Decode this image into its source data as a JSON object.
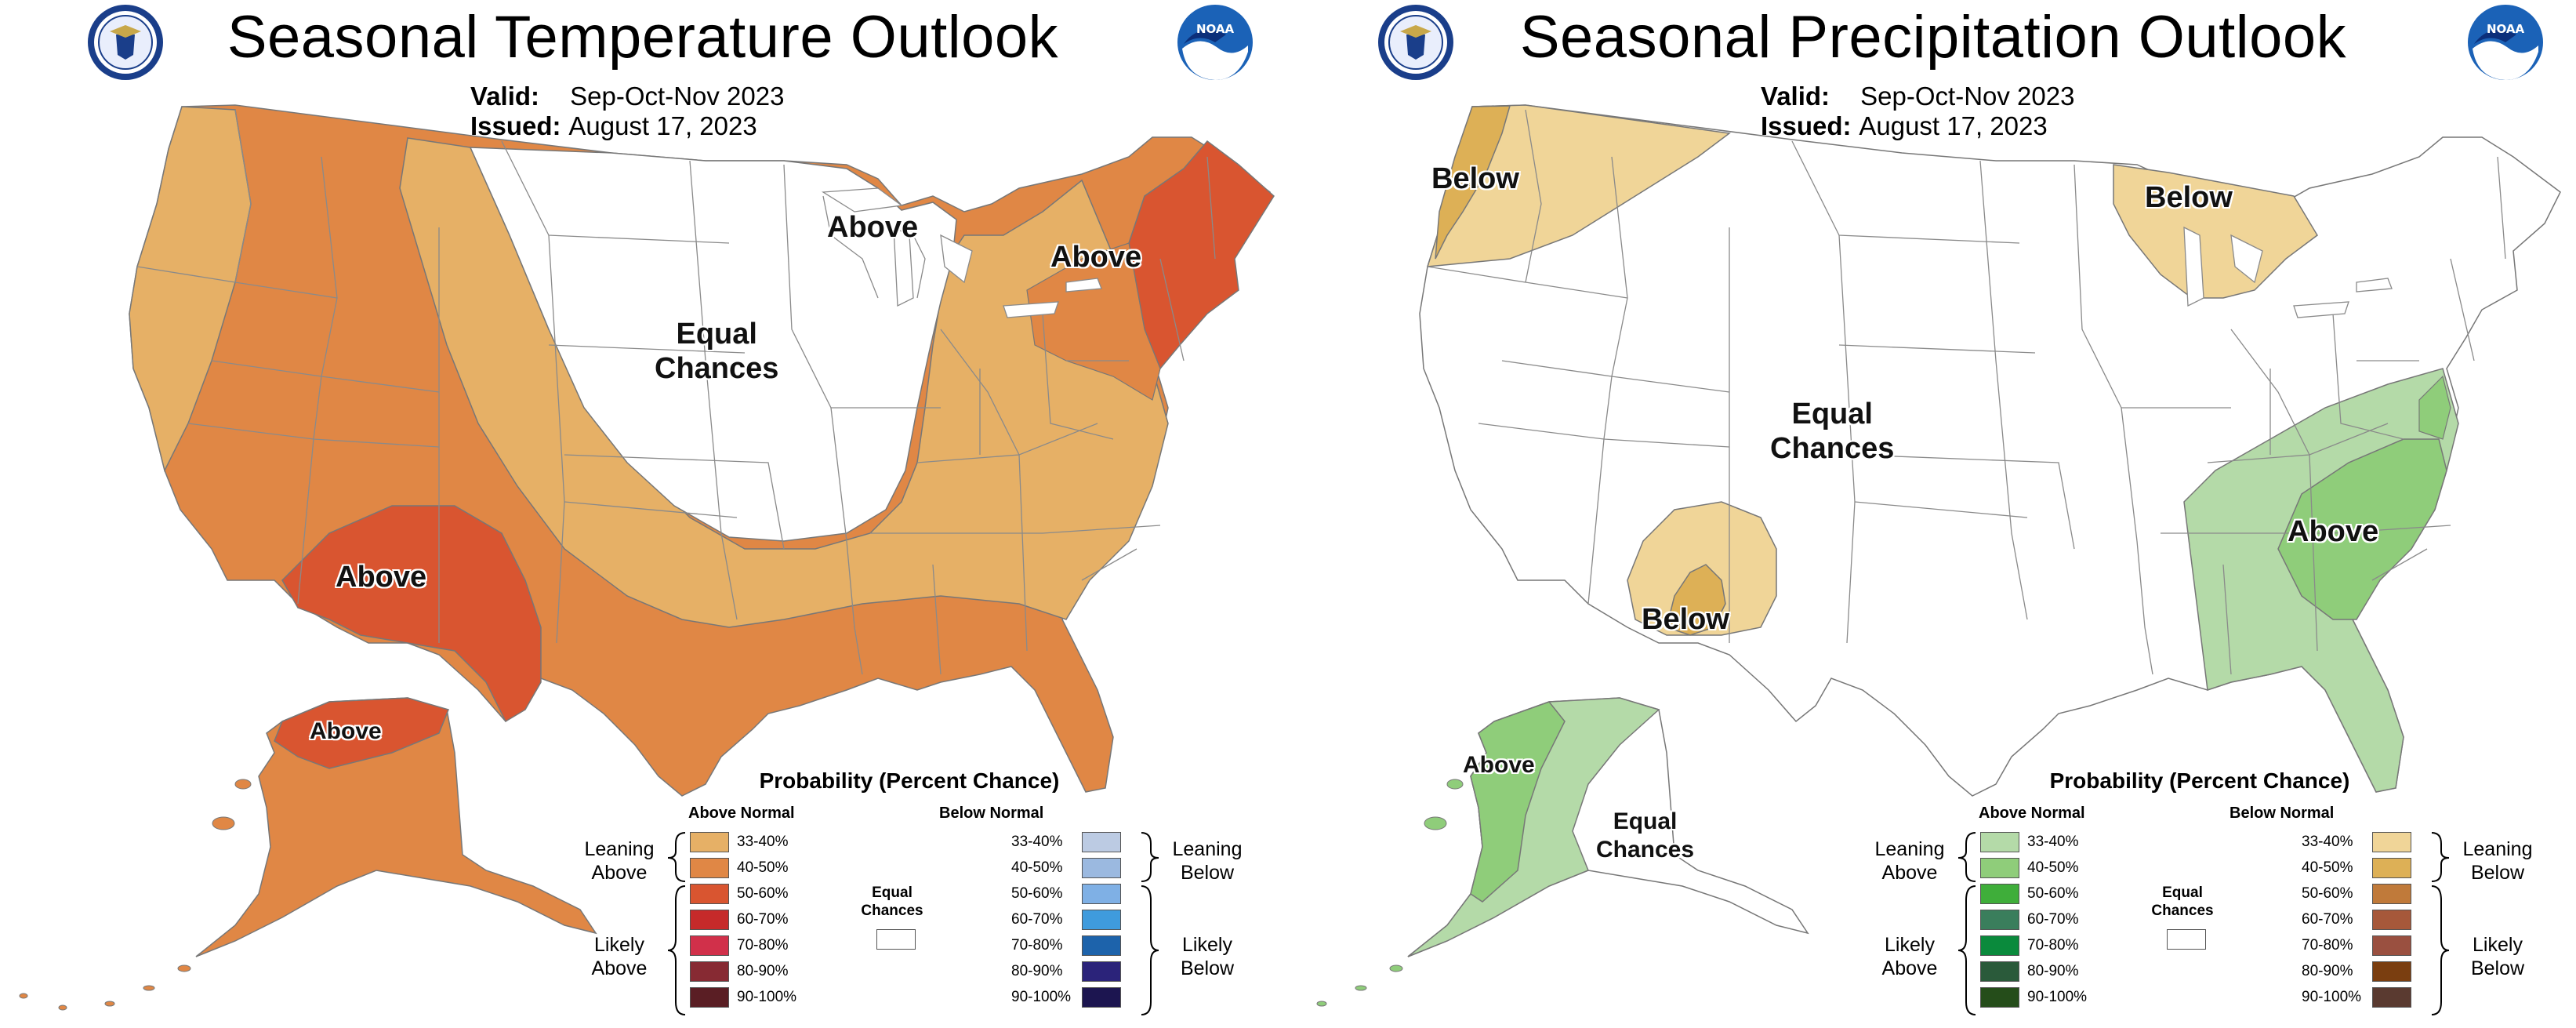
{
  "temperature": {
    "title": "Seasonal Temperature Outlook",
    "valid_label": "Valid:",
    "valid_value": "Sep-Oct-Nov 2023",
    "issued_label": "Issued:",
    "issued_value": "August 17, 2023",
    "region_labels": {
      "west_above": "Above",
      "northeast_above": "Above",
      "great_lakes_above": "Above",
      "central_equal": "Equal\nChances",
      "alaska_above": "Above"
    },
    "colors": {
      "lean_above": "#e6b066",
      "above_40_50": "#e08745",
      "above_50_60": "#d95530"
    }
  },
  "precipitation": {
    "title": "Seasonal Precipitation Outlook",
    "valid_label": "Valid:",
    "valid_value": "Sep-Oct-Nov 2023",
    "issued_label": "Issued:",
    "issued_value": "August 17, 2023",
    "region_labels": {
      "northwest_below": "Below",
      "great_lakes_below": "Below",
      "central_equal": "Equal\nChances",
      "southwest_below": "Below",
      "southeast_above": "Above",
      "alaska_above": "Above",
      "alaska_equal": "Equal\nChances"
    },
    "colors": {
      "wet_33_40": "#b4daa8",
      "wet_40_50": "#8fcd7a",
      "dry_33_40": "#f0d598",
      "dry_40_50": "#ddb056"
    }
  },
  "legend_temp": {
    "title": "Probability (Percent Chance)",
    "above_head": "Above Normal",
    "below_head": "Below Normal",
    "leaning_above": "Leaning\nAbove",
    "likely_above": "Likely\nAbove",
    "leaning_below": "Leaning\nBelow",
    "likely_below": "Likely\nBelow",
    "equal": "Equal\nChances",
    "above_rows": [
      {
        "label": "33-40%",
        "color": "#e6b066"
      },
      {
        "label": "40-50%",
        "color": "#e08745"
      },
      {
        "label": "50-60%",
        "color": "#d95530"
      },
      {
        "label": "60-70%",
        "color": "#c62a2a"
      },
      {
        "label": "70-80%",
        "color": "#d1304a"
      },
      {
        "label": "80-90%",
        "color": "#872a33"
      },
      {
        "label": "90-100%",
        "color": "#5a1e24"
      }
    ],
    "below_rows": [
      {
        "label": "33-40%",
        "color": "#bccbe3"
      },
      {
        "label": "40-50%",
        "color": "#9bb9e0"
      },
      {
        "label": "50-60%",
        "color": "#7fb0e5"
      },
      {
        "label": "60-70%",
        "color": "#3f9bdd"
      },
      {
        "label": "70-80%",
        "color": "#1d63ab"
      },
      {
        "label": "80-90%",
        "color": "#2b237a"
      },
      {
        "label": "90-100%",
        "color": "#1c1550"
      }
    ]
  },
  "legend_precip": {
    "title": "Probability (Percent Chance)",
    "above_head": "Above Normal",
    "below_head": "Below Normal",
    "leaning_above": "Leaning\nAbove",
    "likely_above": "Likely\nAbove",
    "leaning_below": "Leaning\nBelow",
    "likely_below": "Likely\nBelow",
    "equal": "Equal\nChances",
    "above_rows": [
      {
        "label": "33-40%",
        "color": "#b4daa8"
      },
      {
        "label": "40-50%",
        "color": "#8fcd7a"
      },
      {
        "label": "50-60%",
        "color": "#3fae3a"
      },
      {
        "label": "60-70%",
        "color": "#3a7e5c"
      },
      {
        "label": "70-80%",
        "color": "#0a8a3c"
      },
      {
        "label": "80-90%",
        "color": "#2a5a3a"
      },
      {
        "label": "90-100%",
        "color": "#254d1a"
      }
    ],
    "below_rows": [
      {
        "label": "33-40%",
        "color": "#f0d598"
      },
      {
        "label": "40-50%",
        "color": "#ddb056"
      },
      {
        "label": "50-60%",
        "color": "#c07a3a"
      },
      {
        "label": "60-70%",
        "color": "#a6583a"
      },
      {
        "label": "70-80%",
        "color": "#9a5040"
      },
      {
        "label": "80-90%",
        "color": "#7a3e10"
      },
      {
        "label": "90-100%",
        "color": "#5a3a30"
      }
    ]
  },
  "logos": {
    "doc_seal": "commerce-seal-icon",
    "noaa_text": "NOAA"
  }
}
